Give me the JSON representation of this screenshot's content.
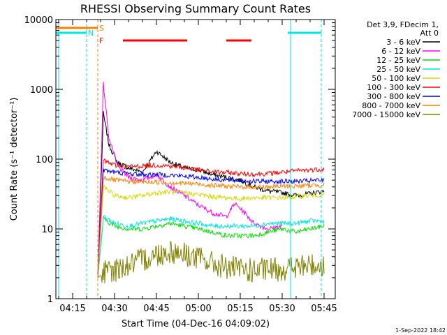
{
  "chart_data": {
    "type": "line",
    "title": "RHESSI Observing Summary Count Rates",
    "xlabel": "Start Time (04-Dec-16 04:09:02)",
    "ylabel": "Count Rate (s⁻¹ detector⁻¹)",
    "y_scale": "log",
    "ylim": [
      1,
      10000
    ],
    "xlim": [
      "04:09",
      "05:49"
    ],
    "x_ticks": [
      "04:15",
      "04:30",
      "04:45",
      "05:00",
      "05:15",
      "05:30",
      "05:45"
    ],
    "y_ticks": [
      "1",
      "10",
      "100",
      "1000",
      "10000"
    ],
    "legend_title": [
      "Det 3,9, FDecim 1,",
      "Att 0"
    ],
    "legend_position": "right",
    "footer": "1-Sep-2022 18:42",
    "flags": [
      {
        "label": "S",
        "color": "#ff8000"
      },
      {
        "label": "F",
        "color": "#ff0000"
      },
      {
        "label": "N",
        "color": "#00e5e5"
      }
    ],
    "intervals": {
      "saa": [
        [
          "04:09",
          "04:24"
        ]
      ],
      "flare": [
        [
          "04:33",
          "04:56"
        ],
        [
          "05:10",
          "05:19"
        ]
      ],
      "night": [
        [
          "04:09",
          "04:20"
        ],
        [
          "05:32",
          "05:44"
        ]
      ]
    },
    "markers_dashed_cyan": [
      "04:20",
      "05:44"
    ],
    "markers_solid_cyan": [
      "04:10",
      "05:33"
    ],
    "markers_dashed_orange": [
      "04:24"
    ],
    "series": [
      {
        "name": "3 - 6 keV",
        "color": "#000000",
        "points": [
          [
            "04:24",
            2
          ],
          [
            "04:26",
            450
          ],
          [
            "04:28",
            160
          ],
          [
            "04:31",
            90
          ],
          [
            "04:35",
            75
          ],
          [
            "04:40",
            65
          ],
          [
            "04:45",
            130
          ],
          [
            "04:50",
            90
          ],
          [
            "04:55",
            75
          ],
          [
            "05:00",
            70
          ],
          [
            "05:05",
            60
          ],
          [
            "05:10",
            55
          ],
          [
            "05:15",
            50
          ],
          [
            "05:20",
            40
          ],
          [
            "05:25",
            35
          ],
          [
            "05:30",
            33
          ],
          [
            "05:35",
            30
          ],
          [
            "05:40",
            32
          ],
          [
            "05:45",
            35
          ]
        ]
      },
      {
        "name": "6 - 12 keV",
        "color": "#ff00ff",
        "points": [
          [
            "04:24",
            2
          ],
          [
            "04:26",
            1200
          ],
          [
            "04:28",
            200
          ],
          [
            "04:31",
            80
          ],
          [
            "04:35",
            55
          ],
          [
            "04:40",
            50
          ],
          [
            "04:45",
            60
          ],
          [
            "04:50",
            40
          ],
          [
            "04:55",
            30
          ],
          [
            "05:00",
            22
          ],
          [
            "05:05",
            17
          ],
          [
            "05:10",
            15
          ],
          [
            "05:13",
            23
          ],
          [
            "05:16",
            18
          ],
          [
            "05:20",
            12
          ],
          [
            "05:25",
            10
          ],
          [
            "05:30",
            11
          ]
        ]
      },
      {
        "name": "12 - 25 keV",
        "color": "#00e000",
        "points": [
          [
            "04:24",
            2
          ],
          [
            "04:26",
            14
          ],
          [
            "04:30",
            11
          ],
          [
            "04:35",
            10
          ],
          [
            "04:40",
            10
          ],
          [
            "04:45",
            11
          ],
          [
            "04:50",
            12
          ],
          [
            "04:55",
            11
          ],
          [
            "05:00",
            10
          ],
          [
            "05:05",
            9
          ],
          [
            "05:10",
            8
          ],
          [
            "05:15",
            8
          ],
          [
            "05:20",
            8
          ],
          [
            "05:25",
            9
          ],
          [
            "05:30",
            10
          ],
          [
            "05:35",
            9
          ],
          [
            "05:40",
            10
          ],
          [
            "05:45",
            11
          ]
        ]
      },
      {
        "name": "25 - 50 keV",
        "color": "#00e5e5",
        "points": [
          [
            "04:24",
            2
          ],
          [
            "04:26",
            15
          ],
          [
            "04:30",
            12
          ],
          [
            "04:35",
            11
          ],
          [
            "04:40",
            12
          ],
          [
            "04:45",
            13
          ],
          [
            "04:50",
            14
          ],
          [
            "04:55",
            13
          ],
          [
            "05:00",
            12
          ],
          [
            "05:05",
            11
          ],
          [
            "05:10",
            11
          ],
          [
            "05:15",
            11
          ],
          [
            "05:20",
            11
          ],
          [
            "05:25",
            12
          ],
          [
            "05:30",
            12
          ],
          [
            "05:35",
            12
          ],
          [
            "05:40",
            13
          ],
          [
            "05:45",
            13
          ]
        ]
      },
      {
        "name": "50 - 100 keV",
        "color": "#d8d800",
        "points": [
          [
            "04:24",
            2
          ],
          [
            "04:26",
            40
          ],
          [
            "04:30",
            30
          ],
          [
            "04:35",
            28
          ],
          [
            "04:40",
            30
          ],
          [
            "04:45",
            33
          ],
          [
            "04:50",
            34
          ],
          [
            "04:55",
            33
          ],
          [
            "05:00",
            31
          ],
          [
            "05:05",
            29
          ],
          [
            "05:10",
            28
          ],
          [
            "05:15",
            27
          ],
          [
            "05:20",
            28
          ],
          [
            "05:25",
            28
          ],
          [
            "05:30",
            28
          ],
          [
            "05:35",
            29
          ],
          [
            "05:40",
            30
          ],
          [
            "05:45",
            31
          ]
        ]
      },
      {
        "name": "100 - 300 keV",
        "color": "#ff0000",
        "points": [
          [
            "04:24",
            2
          ],
          [
            "04:26",
            95
          ],
          [
            "04:30",
            82
          ],
          [
            "04:35",
            78
          ],
          [
            "04:40",
            80
          ],
          [
            "04:45",
            82
          ],
          [
            "04:50",
            80
          ],
          [
            "04:55",
            75
          ],
          [
            "05:00",
            70
          ],
          [
            "05:05",
            66
          ],
          [
            "05:10",
            64
          ],
          [
            "05:15",
            62
          ],
          [
            "05:20",
            61
          ],
          [
            "05:25",
            62
          ],
          [
            "05:30",
            65
          ],
          [
            "05:35",
            68
          ],
          [
            "05:40",
            70
          ],
          [
            "05:45",
            72
          ]
        ]
      },
      {
        "name": "300 - 800 keV",
        "color": "#0000ff",
        "points": [
          [
            "04:24",
            2
          ],
          [
            "04:26",
            70
          ],
          [
            "04:30",
            65
          ],
          [
            "04:35",
            62
          ],
          [
            "04:40",
            60
          ],
          [
            "04:45",
            60
          ],
          [
            "04:50",
            59
          ],
          [
            "04:55",
            57
          ],
          [
            "05:00",
            55
          ],
          [
            "05:05",
            52
          ],
          [
            "05:10",
            50
          ],
          [
            "05:15",
            49
          ],
          [
            "05:20",
            48
          ],
          [
            "05:25",
            48
          ],
          [
            "05:30",
            48
          ],
          [
            "05:35",
            48
          ],
          [
            "05:40",
            49
          ],
          [
            "05:45",
            50
          ]
        ]
      },
      {
        "name": "800 - 7000 keV",
        "color": "#ff8000",
        "points": [
          [
            "04:24",
            2
          ],
          [
            "04:26",
            55
          ],
          [
            "04:30",
            50
          ],
          [
            "04:35",
            48
          ],
          [
            "04:40",
            47
          ],
          [
            "04:45",
            47
          ],
          [
            "04:50",
            46
          ],
          [
            "04:55",
            45
          ],
          [
            "05:00",
            44
          ],
          [
            "05:05",
            42
          ],
          [
            "05:10",
            41
          ],
          [
            "05:15",
            40
          ],
          [
            "05:20",
            40
          ],
          [
            "05:25",
            40
          ],
          [
            "05:30",
            41
          ],
          [
            "05:35",
            41
          ],
          [
            "05:40",
            42
          ],
          [
            "05:45",
            43
          ]
        ]
      },
      {
        "name": "7000 - 15000 keV",
        "color": "#808000",
        "points": [
          [
            "04:24",
            2
          ],
          [
            "04:26",
            2.3
          ],
          [
            "04:30",
            2.6
          ],
          [
            "04:35",
            3.0
          ],
          [
            "04:40",
            3.6
          ],
          [
            "04:45",
            4.3
          ],
          [
            "04:50",
            4.8
          ],
          [
            "04:55",
            4.4
          ],
          [
            "05:00",
            3.8
          ],
          [
            "05:05",
            3.2
          ],
          [
            "05:10",
            2.8
          ],
          [
            "05:15",
            2.6
          ],
          [
            "05:20",
            2.5
          ],
          [
            "05:25",
            2.6
          ],
          [
            "05:30",
            2.7
          ],
          [
            "05:35",
            2.8
          ],
          [
            "05:40",
            3.0
          ],
          [
            "05:45",
            3.1
          ]
        ]
      }
    ]
  }
}
